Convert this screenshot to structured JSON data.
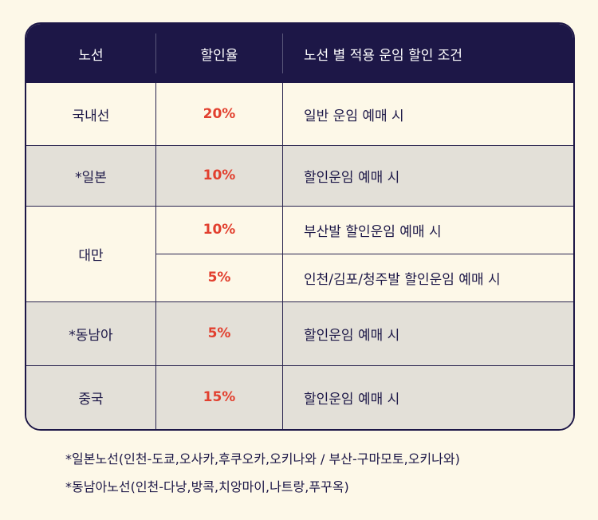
{
  "header": {
    "route": "노선",
    "rate": "할인율",
    "condition": "노선 별 적용 운임 할인 조건"
  },
  "rows": [
    {
      "route": "국내선",
      "rate": "20%",
      "condition": "일반 운임 예매 시"
    },
    {
      "route": "*일본",
      "rate": "10%",
      "condition": "할인운임 예매 시"
    },
    {
      "route": "대만",
      "sub": [
        {
          "rate": "10%",
          "condition": "부산발 할인운임 예매 시"
        },
        {
          "rate": "5%",
          "condition": "인천/김포/청주발 할인운임 예매 시"
        }
      ]
    },
    {
      "route": "*동남아",
      "rate": "5%",
      "condition": "할인운임 예매 시"
    },
    {
      "route": "중국",
      "rate": "15%",
      "condition": "할인운임 예매 시"
    }
  ],
  "notes": [
    "*일본노선(인천-도쿄,오사카,후쿠오카,오키나와 / 부산-구마모토,오키나와)",
    "*동남아노선(인천-다낭,방콕,치앙마이,나트랑,푸꾸옥)"
  ],
  "colors": {
    "header_bg": "#1d1747",
    "rate_text": "#e2402f",
    "row_gray": "#e3e0d8",
    "page_bg": "#fdf8e8"
  }
}
